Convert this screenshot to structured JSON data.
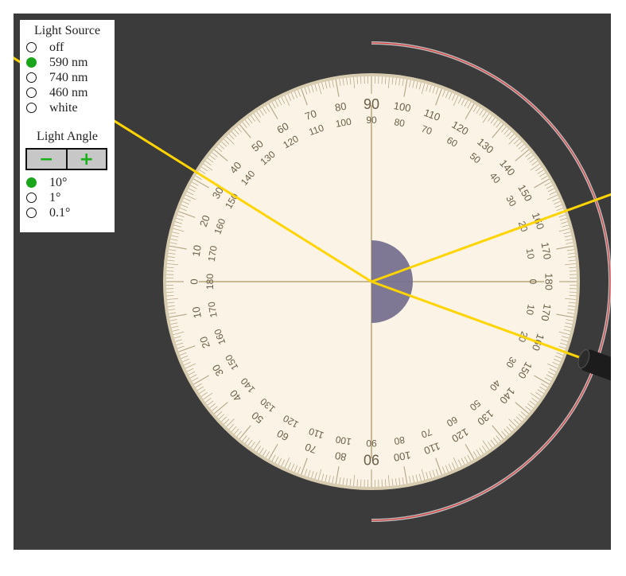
{
  "panel": {
    "light_source_title": "Light Source",
    "light_sources": [
      {
        "label": "off",
        "selected": false
      },
      {
        "label": "590 nm",
        "selected": true
      },
      {
        "label": "740 nm",
        "selected": false
      },
      {
        "label": "460 nm",
        "selected": false
      },
      {
        "label": "white",
        "selected": false
      }
    ],
    "light_angle_title": "Light Angle",
    "decrease_label": "−",
    "increase_label": "+",
    "angle_steps": [
      {
        "label": "10°",
        "selected": true
      },
      {
        "label": "1°",
        "selected": false
      },
      {
        "label": "0.1°",
        "selected": false
      }
    ]
  },
  "scene": {
    "incident_angle_deg": 20,
    "reflected_angle_deg": 20,
    "refracted_angle_deg": 32,
    "beam_color": "#ffd400",
    "lens_color": "#77718f",
    "protractor_color": "#fbf4e6",
    "track_color": "#e03a3a"
  }
}
